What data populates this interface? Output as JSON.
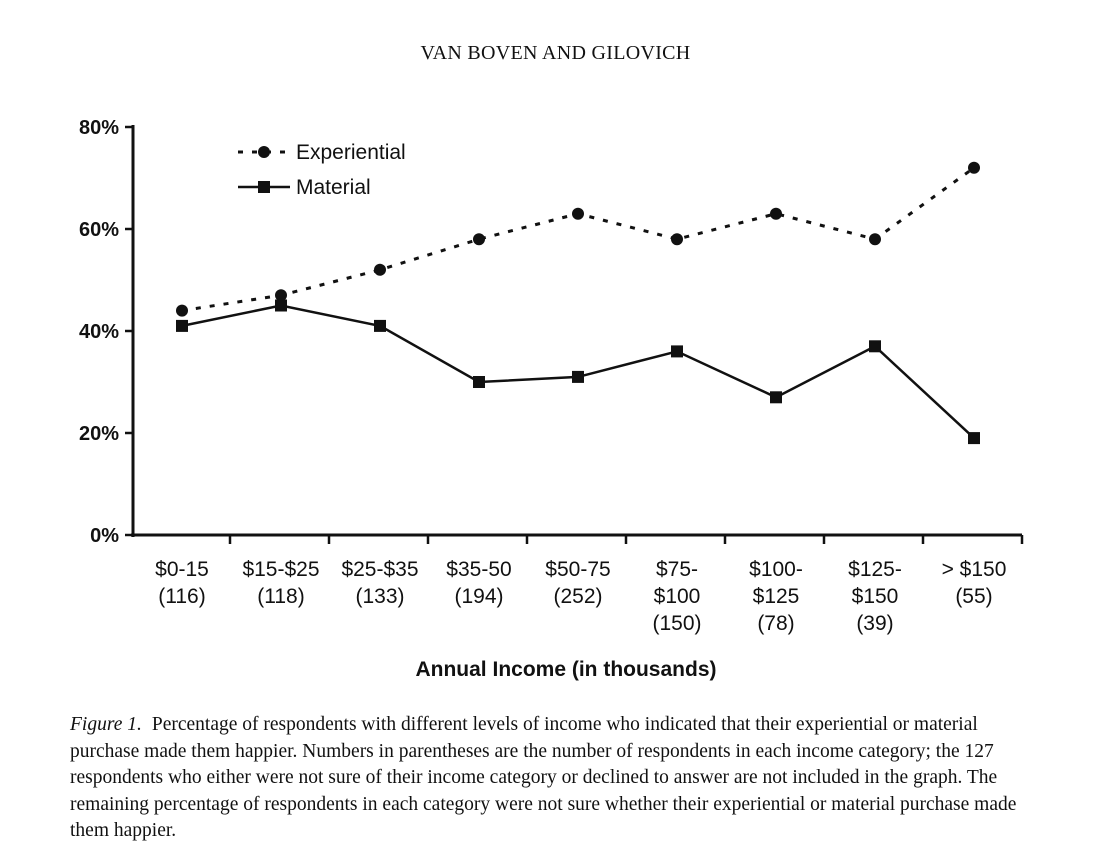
{
  "running_head": "VAN BOVEN AND GILOVICH",
  "caption": {
    "label": "Figure 1.",
    "text": "Percentage of respondents with different levels of income who indicated that their experiential or material purchase made them happier. Numbers in parentheses are the number of respondents in each income category; the 127 respondents who either were not sure of their income category or declined to answer are not included in the graph. The remaining percentage of respondents in each category were not sure whether their experiential or material purchase made them happier."
  },
  "chart_data": {
    "type": "line",
    "title": "",
    "xlabel": "Annual Income (in thousands)",
    "ylabel": "",
    "ylim": [
      0,
      80
    ],
    "yticks": [
      0,
      20,
      40,
      60,
      80
    ],
    "ytick_labels": [
      "0%",
      "20%",
      "40%",
      "60%",
      "80%"
    ],
    "grid": false,
    "legend_position": "top-left",
    "categories": [
      [
        "$0-15",
        "(116)"
      ],
      [
        "$15-$25",
        "(118)"
      ],
      [
        "$25-$35",
        "(133)"
      ],
      [
        "$35-50",
        "(194)"
      ],
      [
        "$50-75",
        "(252)"
      ],
      [
        "$75-",
        "$100",
        "(150)"
      ],
      [
        "$100-",
        "$125",
        "(78)"
      ],
      [
        "$125-",
        "$150",
        "(39)"
      ],
      [
        "> $150",
        "(55)"
      ]
    ],
    "series": [
      {
        "name": "Experiential",
        "marker": "circle",
        "line": "dotted",
        "values": [
          44,
          47,
          52,
          58,
          63,
          58,
          63,
          58,
          72
        ]
      },
      {
        "name": "Material",
        "marker": "square",
        "line": "solid",
        "values": [
          41,
          45,
          41,
          30,
          31,
          36,
          27,
          37,
          19
        ]
      }
    ]
  }
}
